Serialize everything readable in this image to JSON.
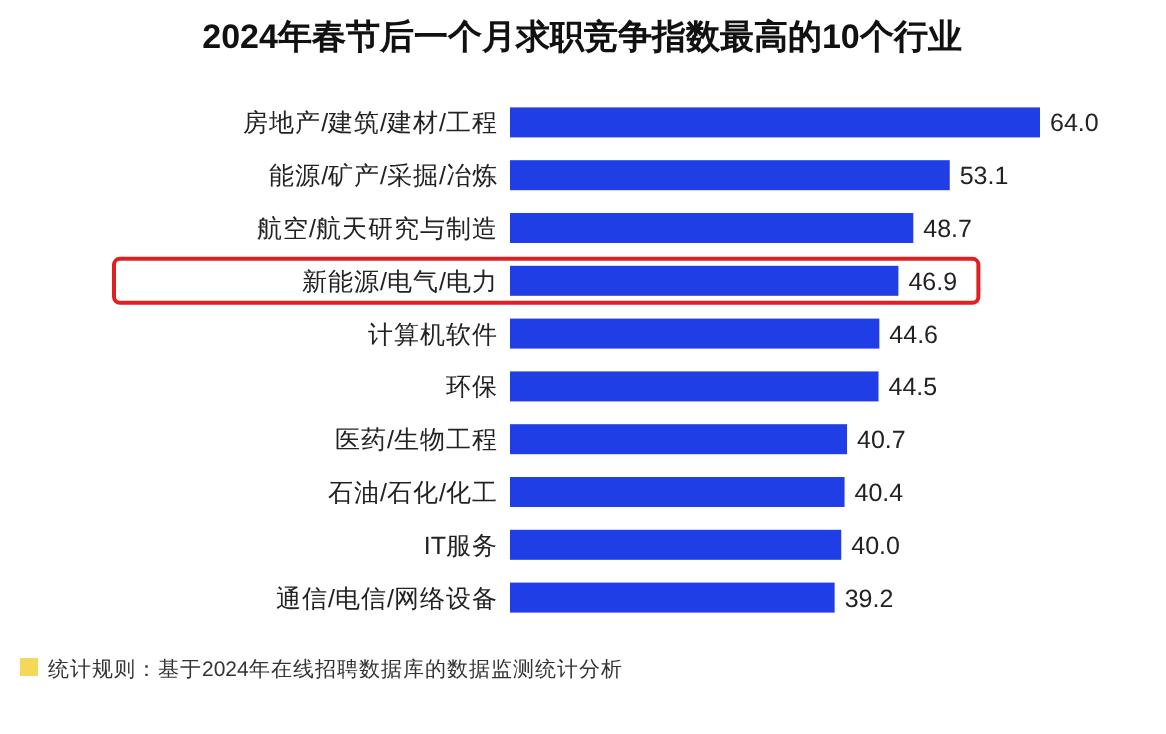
{
  "chart_data": {
    "type": "bar",
    "orientation": "horizontal",
    "title": "2024年春节后一个月求职竞争指数最高的10个行业",
    "categories": [
      "房地产/建筑/建材/工程",
      "能源/矿产/采掘/冶炼",
      "航空/航天研究与制造",
      "新能源/电气/电力",
      "计算机软件",
      "环保",
      "医药/生物工程",
      "石油/石化/化工",
      "IT服务",
      "通信/电信/网络设备"
    ],
    "values": [
      64.0,
      53.1,
      48.7,
      46.9,
      44.6,
      44.5,
      40.7,
      40.4,
      40.0,
      39.2
    ],
    "value_labels": [
      "64.0",
      "53.1",
      "48.7",
      "46.9",
      "44.6",
      "44.5",
      "40.7",
      "40.4",
      "40.0",
      "39.2"
    ],
    "color": "#1f3ee6",
    "annotations": [
      "统计规则：基于2024年在线招聘数据库的数据监测统计分析"
    ]
  }
}
